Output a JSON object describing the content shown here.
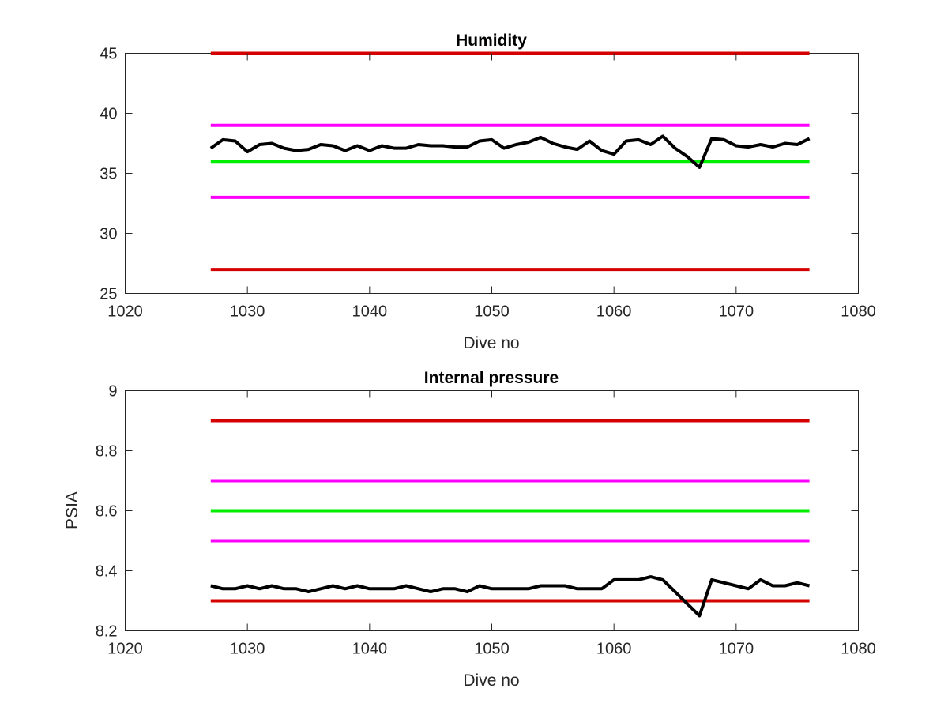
{
  "chart_data": [
    {
      "type": "line",
      "title": "Humidity",
      "xlabel": "Dive no",
      "ylabel": "",
      "xlim": [
        1020,
        1080
      ],
      "ylim": [
        25,
        45
      ],
      "xticks": [
        1020,
        1030,
        1040,
        1050,
        1060,
        1070,
        1080
      ],
      "yticks": [
        25,
        30,
        35,
        40,
        45
      ],
      "grid": false,
      "series": [
        {
          "color": "#000000",
          "x": [
            1027,
            1028,
            1029,
            1030,
            1031,
            1032,
            1033,
            1034,
            1035,
            1036,
            1037,
            1038,
            1039,
            1040,
            1041,
            1042,
            1043,
            1044,
            1045,
            1046,
            1047,
            1048,
            1049,
            1050,
            1051,
            1052,
            1053,
            1054,
            1055,
            1056,
            1057,
            1058,
            1059,
            1060,
            1061,
            1062,
            1063,
            1064,
            1065,
            1066,
            1067,
            1068,
            1069,
            1070,
            1071,
            1072,
            1073,
            1074,
            1075,
            1076
          ],
          "y": [
            37.1,
            37.8,
            37.7,
            36.8,
            37.4,
            37.5,
            37.1,
            36.9,
            37.0,
            37.4,
            37.3,
            36.9,
            37.3,
            36.9,
            37.3,
            37.1,
            37.1,
            37.4,
            37.3,
            37.3,
            37.2,
            37.2,
            37.7,
            37.8,
            37.1,
            37.4,
            37.6,
            38.0,
            37.5,
            37.2,
            37.0,
            37.7,
            36.9,
            36.6,
            37.7,
            37.8,
            37.4,
            38.1,
            37.1,
            36.4,
            35.5,
            37.9,
            37.8,
            37.3,
            37.2,
            37.4,
            37.2,
            37.5,
            37.4,
            37.9
          ]
        },
        {
          "color": "#d40000",
          "x": [
            1027,
            1076
          ],
          "y": [
            45,
            45
          ]
        },
        {
          "color": "#ff00ff",
          "x": [
            1027,
            1076
          ],
          "y": [
            39,
            39
          ]
        },
        {
          "color": "#00ee00",
          "x": [
            1027,
            1076
          ],
          "y": [
            36,
            36
          ]
        },
        {
          "color": "#ff00ff",
          "x": [
            1027,
            1076
          ],
          "y": [
            33,
            33
          ]
        },
        {
          "color": "#d40000",
          "x": [
            1027,
            1076
          ],
          "y": [
            27,
            27
          ]
        }
      ]
    },
    {
      "type": "line",
      "title": "Internal pressure",
      "xlabel": "Dive no",
      "ylabel": "PSIA",
      "xlim": [
        1020,
        1080
      ],
      "ylim": [
        8.2,
        9
      ],
      "xticks": [
        1020,
        1030,
        1040,
        1050,
        1060,
        1070,
        1080
      ],
      "yticks": [
        8.2,
        8.4,
        8.6,
        8.8,
        9
      ],
      "grid": false,
      "series": [
        {
          "color": "#000000",
          "x": [
            1027,
            1028,
            1029,
            1030,
            1031,
            1032,
            1033,
            1034,
            1035,
            1036,
            1037,
            1038,
            1039,
            1040,
            1041,
            1042,
            1043,
            1044,
            1045,
            1046,
            1047,
            1048,
            1049,
            1050,
            1051,
            1052,
            1053,
            1054,
            1055,
            1056,
            1057,
            1058,
            1059,
            1060,
            1061,
            1062,
            1063,
            1064,
            1065,
            1066,
            1067,
            1068,
            1069,
            1070,
            1071,
            1072,
            1073,
            1074,
            1075,
            1076
          ],
          "y": [
            8.35,
            8.34,
            8.34,
            8.35,
            8.34,
            8.35,
            8.34,
            8.34,
            8.33,
            8.34,
            8.35,
            8.34,
            8.35,
            8.34,
            8.34,
            8.34,
            8.35,
            8.34,
            8.33,
            8.34,
            8.34,
            8.33,
            8.35,
            8.34,
            8.34,
            8.34,
            8.34,
            8.35,
            8.35,
            8.35,
            8.34,
            8.34,
            8.34,
            8.37,
            8.37,
            8.37,
            8.38,
            8.37,
            8.33,
            8.29,
            8.25,
            8.37,
            8.36,
            8.35,
            8.34,
            8.37,
            8.35,
            8.35,
            8.36,
            8.35
          ]
        },
        {
          "color": "#d40000",
          "x": [
            1027,
            1076
          ],
          "y": [
            8.9,
            8.9
          ]
        },
        {
          "color": "#ff00ff",
          "x": [
            1027,
            1076
          ],
          "y": [
            8.7,
            8.7
          ]
        },
        {
          "color": "#00ee00",
          "x": [
            1027,
            1076
          ],
          "y": [
            8.6,
            8.6
          ]
        },
        {
          "color": "#ff00ff",
          "x": [
            1027,
            1076
          ],
          "y": [
            8.5,
            8.5
          ]
        },
        {
          "color": "#d40000",
          "x": [
            1027,
            1076
          ],
          "y": [
            8.3,
            8.3
          ]
        }
      ]
    }
  ]
}
